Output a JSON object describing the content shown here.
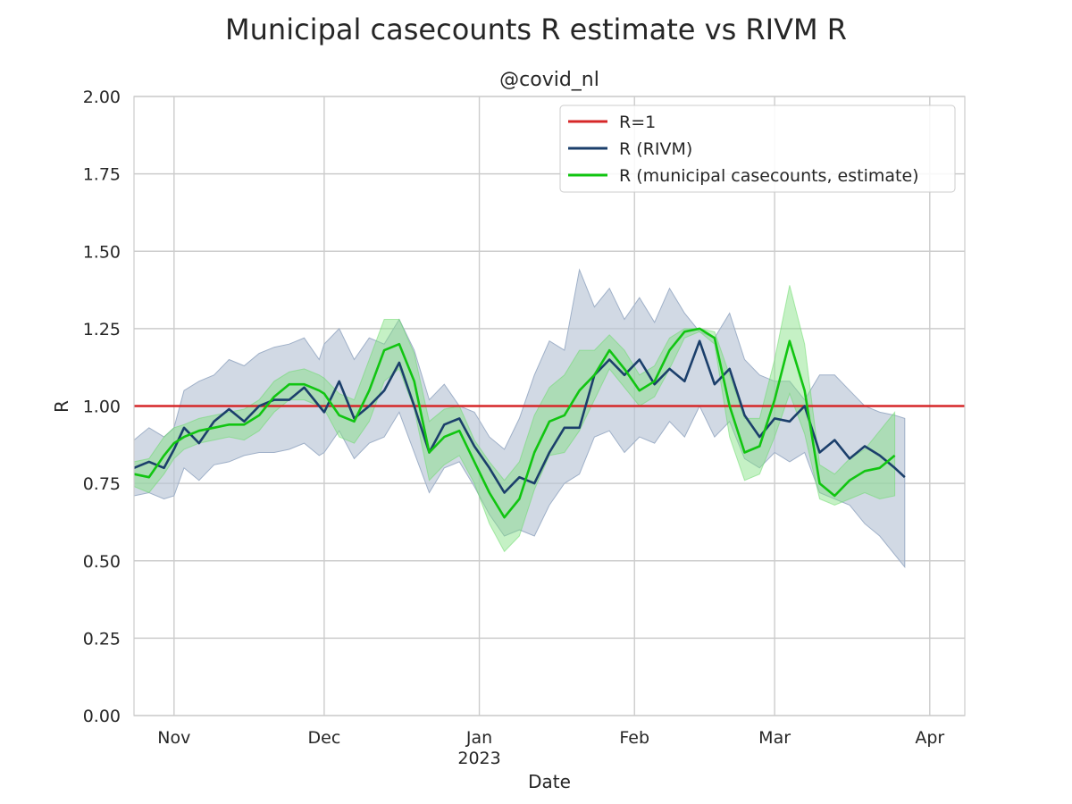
{
  "chart_data": {
    "type": "line",
    "title": "Municipal casecounts R estimate vs RIVM R",
    "subtitle": "@covid_nl",
    "xlabel": "Date",
    "ylabel": "R",
    "xlim": [
      "2022-10-24",
      "2023-04-08"
    ],
    "ylim": [
      0,
      2
    ],
    "yticks": [
      "0.00",
      "0.25",
      "0.50",
      "0.75",
      "1.00",
      "1.25",
      "1.50",
      "1.75",
      "2.00"
    ],
    "xticks": [
      {
        "date": "2022-11-01",
        "label": "Nov",
        "sublabel": ""
      },
      {
        "date": "2022-12-01",
        "label": "Dec",
        "sublabel": ""
      },
      {
        "date": "2023-01-01",
        "label": "Jan",
        "sublabel": "2023"
      },
      {
        "date": "2023-02-01",
        "label": "Feb",
        "sublabel": ""
      },
      {
        "date": "2023-03-01",
        "label": "Mar",
        "sublabel": ""
      },
      {
        "date": "2023-04-01",
        "label": "Apr",
        "sublabel": ""
      }
    ],
    "grid": true,
    "legend_position": "upper right",
    "colors": {
      "r1": "#d62728",
      "rivm": "#1b3f6b",
      "rivm_band": "#b8c4d6",
      "muni": "#11c511",
      "muni_band": "#7ee07e"
    },
    "series": [
      {
        "name": "R=1",
        "style": "hline",
        "y": 1.0
      },
      {
        "name": "R (RIVM)",
        "x": [
          "2022-10-24",
          "2022-10-27",
          "2022-10-30",
          "2022-11-01",
          "2022-11-03",
          "2022-11-06",
          "2022-11-09",
          "2022-11-12",
          "2022-11-15",
          "2022-11-18",
          "2022-11-21",
          "2022-11-24",
          "2022-11-27",
          "2022-11-30",
          "2022-12-01",
          "2022-12-04",
          "2022-12-07",
          "2022-12-10",
          "2022-12-13",
          "2022-12-16",
          "2022-12-19",
          "2022-12-22",
          "2022-12-25",
          "2022-12-28",
          "2022-12-31",
          "2023-01-03",
          "2023-01-06",
          "2023-01-09",
          "2023-01-12",
          "2023-01-15",
          "2023-01-18",
          "2023-01-21",
          "2023-01-24",
          "2023-01-27",
          "2023-01-30",
          "2023-02-02",
          "2023-02-05",
          "2023-02-08",
          "2023-02-11",
          "2023-02-14",
          "2023-02-17",
          "2023-02-20",
          "2023-02-23",
          "2023-02-26",
          "2023-03-01",
          "2023-03-04",
          "2023-03-07",
          "2023-03-10",
          "2023-03-13",
          "2023-03-16",
          "2023-03-19",
          "2023-03-22",
          "2023-03-25",
          "2023-03-27"
        ],
        "y": [
          0.8,
          0.82,
          0.8,
          0.86,
          0.93,
          0.88,
          0.95,
          0.99,
          0.95,
          1.0,
          1.02,
          1.02,
          1.06,
          1.0,
          0.98,
          1.08,
          0.96,
          1.0,
          1.05,
          1.14,
          1.0,
          0.85,
          0.94,
          0.96,
          0.87,
          0.8,
          0.72,
          0.77,
          0.75,
          0.85,
          0.93,
          0.93,
          1.1,
          1.15,
          1.1,
          1.15,
          1.07,
          1.12,
          1.08,
          1.21,
          1.07,
          1.12,
          0.97,
          0.9,
          0.96,
          0.95,
          1.0,
          0.85,
          0.89,
          0.83,
          0.87,
          0.84,
          0.8,
          0.77
        ],
        "band_upper": [
          0.89,
          0.93,
          0.9,
          0.93,
          1.05,
          1.08,
          1.1,
          1.15,
          1.13,
          1.17,
          1.19,
          1.2,
          1.22,
          1.15,
          1.2,
          1.25,
          1.15,
          1.22,
          1.2,
          1.28,
          1.18,
          1.02,
          1.07,
          1.0,
          0.98,
          0.9,
          0.86,
          0.96,
          1.1,
          1.21,
          1.18,
          1.44,
          1.32,
          1.38,
          1.28,
          1.35,
          1.27,
          1.38,
          1.3,
          1.24,
          1.22,
          1.3,
          1.15,
          1.1,
          1.08,
          1.08,
          1.02,
          1.1,
          1.1,
          1.05,
          1.0,
          0.98,
          0.97,
          0.96
        ],
        "band_lower": [
          0.71,
          0.72,
          0.7,
          0.71,
          0.8,
          0.76,
          0.81,
          0.82,
          0.84,
          0.85,
          0.85,
          0.86,
          0.88,
          0.84,
          0.85,
          0.92,
          0.83,
          0.88,
          0.9,
          0.98,
          0.85,
          0.72,
          0.8,
          0.82,
          0.74,
          0.65,
          0.58,
          0.6,
          0.58,
          0.68,
          0.75,
          0.78,
          0.9,
          0.92,
          0.85,
          0.9,
          0.88,
          0.95,
          0.9,
          1.0,
          0.9,
          0.95,
          0.83,
          0.8,
          0.85,
          0.82,
          0.85,
          0.72,
          0.7,
          0.68,
          0.62,
          0.58,
          0.52,
          0.48
        ]
      },
      {
        "name": "R (municipal casecounts, estimate)",
        "x": [
          "2022-10-24",
          "2022-10-27",
          "2022-10-30",
          "2022-11-01",
          "2022-11-03",
          "2022-11-06",
          "2022-11-09",
          "2022-11-12",
          "2022-11-15",
          "2022-11-18",
          "2022-11-21",
          "2022-11-24",
          "2022-11-27",
          "2022-11-30",
          "2022-12-01",
          "2022-12-04",
          "2022-12-07",
          "2022-12-10",
          "2022-12-13",
          "2022-12-16",
          "2022-12-19",
          "2022-12-22",
          "2022-12-25",
          "2022-12-28",
          "2022-12-31",
          "2023-01-03",
          "2023-01-06",
          "2023-01-09",
          "2023-01-12",
          "2023-01-15",
          "2023-01-18",
          "2023-01-21",
          "2023-01-24",
          "2023-01-27",
          "2023-01-30",
          "2023-02-02",
          "2023-02-05",
          "2023-02-08",
          "2023-02-11",
          "2023-02-14",
          "2023-02-17",
          "2023-02-20",
          "2023-02-23",
          "2023-02-26",
          "2023-03-01",
          "2023-03-04",
          "2023-03-07",
          "2023-03-10",
          "2023-03-13",
          "2023-03-16",
          "2023-03-19",
          "2023-03-22",
          "2023-03-25"
        ],
        "y": [
          0.78,
          0.77,
          0.84,
          0.88,
          0.9,
          0.92,
          0.93,
          0.94,
          0.94,
          0.97,
          1.03,
          1.07,
          1.07,
          1.05,
          1.04,
          0.97,
          0.95,
          1.05,
          1.18,
          1.2,
          1.08,
          0.85,
          0.9,
          0.92,
          0.82,
          0.72,
          0.64,
          0.7,
          0.85,
          0.95,
          0.97,
          1.05,
          1.1,
          1.18,
          1.12,
          1.05,
          1.08,
          1.18,
          1.24,
          1.25,
          1.22,
          1.0,
          0.85,
          0.87,
          1.02,
          1.21,
          1.05,
          0.75,
          0.71,
          0.76,
          0.79,
          0.8,
          0.84
        ],
        "band_upper": [
          0.82,
          0.83,
          0.9,
          0.93,
          0.94,
          0.96,
          0.97,
          0.98,
          0.99,
          1.02,
          1.08,
          1.11,
          1.12,
          1.1,
          1.09,
          1.04,
          1.02,
          1.15,
          1.28,
          1.28,
          1.17,
          0.95,
          0.99,
          1.0,
          0.89,
          0.82,
          0.76,
          0.82,
          0.97,
          1.06,
          1.1,
          1.18,
          1.18,
          1.23,
          1.18,
          1.1,
          1.13,
          1.22,
          1.25,
          1.25,
          1.24,
          1.1,
          0.96,
          0.96,
          1.15,
          1.39,
          1.2,
          0.81,
          0.78,
          0.83,
          0.86,
          0.92,
          0.98
        ],
        "band_lower": [
          0.74,
          0.72,
          0.78,
          0.83,
          0.86,
          0.88,
          0.89,
          0.9,
          0.89,
          0.92,
          0.98,
          1.02,
          1.02,
          1.0,
          0.99,
          0.9,
          0.88,
          0.95,
          1.08,
          1.12,
          0.99,
          0.76,
          0.81,
          0.84,
          0.75,
          0.62,
          0.53,
          0.58,
          0.73,
          0.84,
          0.85,
          0.92,
          1.02,
          1.12,
          1.06,
          1.0,
          1.03,
          1.12,
          1.22,
          1.24,
          1.2,
          0.9,
          0.76,
          0.78,
          0.9,
          1.04,
          0.91,
          0.7,
          0.68,
          0.7,
          0.72,
          0.7,
          0.71
        ]
      }
    ]
  }
}
